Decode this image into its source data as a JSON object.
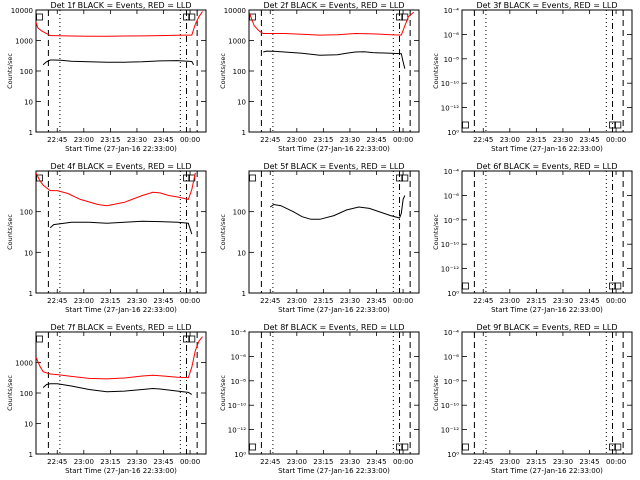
{
  "figure": {
    "time_ticks": [
      "22:45",
      "23:00",
      "23:15",
      "23:30",
      "23:45",
      "00:00"
    ],
    "xlabel": "Start Time (27-Jan-16 22:33:00)",
    "ylabel": "Counts/sec",
    "colors": {
      "events": "#000000",
      "lld": "#ff0000"
    }
  },
  "chart_data": [
    {
      "type": "line",
      "title": "Det 1f BLACK = Events, RED = LLD",
      "xlabel": "Start Time (27-Jan-16 22:33:00)",
      "ylabel": "Counts/sec",
      "yscale": "log",
      "ylim": [
        1,
        10000
      ],
      "ytick_labels": [
        "1",
        "10",
        "100",
        "1000",
        "10000"
      ],
      "x_unit": "minutes after 22:33:00",
      "xlim": [
        0,
        96
      ],
      "series": [
        {
          "color": "black",
          "points": [
            [
              4,
              160
            ],
            [
              6,
              200
            ],
            [
              8,
              230
            ],
            [
              10,
              230
            ],
            [
              14,
              225
            ],
            [
              20,
              210
            ],
            [
              30,
              200
            ],
            [
              40,
              195
            ],
            [
              50,
              195
            ],
            [
              60,
              200
            ],
            [
              70,
              215
            ],
            [
              80,
              220
            ],
            [
              88,
              205
            ],
            [
              89,
              160
            ]
          ]
        },
        {
          "color": "red",
          "points": [
            [
              0,
              4000
            ],
            [
              1,
              2600
            ],
            [
              3,
              2100
            ],
            [
              6,
              1700
            ],
            [
              8,
              1450
            ],
            [
              10,
              1450
            ],
            [
              20,
              1400
            ],
            [
              30,
              1380
            ],
            [
              40,
              1380
            ],
            [
              50,
              1400
            ],
            [
              60,
              1420
            ],
            [
              70,
              1450
            ],
            [
              80,
              1480
            ],
            [
              85,
              1500
            ],
            [
              88,
              1500
            ],
            [
              90,
              3500
            ],
            [
              92,
              6000
            ],
            [
              94,
              9000
            ]
          ]
        }
      ]
    },
    {
      "type": "line",
      "title": "Det 2f BLACK = Events, RED = LLD",
      "xlabel": "Start Time (27-Jan-16 22:33:00)",
      "ylabel": "Counts/sec",
      "yscale": "log",
      "ylim": [
        1,
        10000
      ],
      "ytick_labels": [
        "1",
        "10",
        "100",
        "1000",
        "10000"
      ],
      "x_unit": "minutes after 22:33:00",
      "xlim": [
        0,
        96
      ],
      "series": [
        {
          "color": "black",
          "points": [
            [
              8,
              420
            ],
            [
              10,
              450
            ],
            [
              15,
              440
            ],
            [
              20,
              420
            ],
            [
              30,
              380
            ],
            [
              40,
              330
            ],
            [
              50,
              340
            ],
            [
              55,
              380
            ],
            [
              60,
              420
            ],
            [
              65,
              430
            ],
            [
              70,
              400
            ],
            [
              80,
              380
            ],
            [
              86,
              370
            ],
            [
              87,
              200
            ],
            [
              88,
              120
            ]
          ]
        },
        {
          "color": "red",
          "points": [
            [
              0,
              9000
            ],
            [
              1,
              6000
            ],
            [
              3,
              3000
            ],
            [
              6,
              2000
            ],
            [
              8,
              1700
            ],
            [
              10,
              1700
            ],
            [
              20,
              1700
            ],
            [
              30,
              1600
            ],
            [
              40,
              1500
            ],
            [
              50,
              1550
            ],
            [
              60,
              1700
            ],
            [
              70,
              1650
            ],
            [
              80,
              1550
            ],
            [
              86,
              1500
            ],
            [
              88,
              3000
            ],
            [
              90,
              6000
            ],
            [
              93,
              8500
            ]
          ]
        }
      ]
    },
    {
      "type": "line",
      "title": "Det 3f BLACK = Events, RED = LLD",
      "xlabel": "Start Time (27-Jan-16 22:33:00)",
      "ylabel": "Counts/sec",
      "yscale": "log",
      "ylim": [
        1,
        1000000000000
      ],
      "ytick_labels": [
        "10⁰",
        "10⁻¹²",
        "10⁻¹⁰",
        "10⁻⁸",
        "10⁻⁶",
        "10⁻⁴"
      ],
      "x_unit": "minutes after 22:33:00",
      "xlim": [
        0,
        96
      ],
      "series": []
    },
    {
      "type": "line",
      "title": "Det 4f BLACK = Events, RED = LLD",
      "xlabel": "Start Time (27-Jan-16 22:33:00)",
      "ylabel": "Counts/sec",
      "yscale": "log",
      "ylim": [
        1,
        1000
      ],
      "ytick_labels": [
        "1",
        "10",
        "100"
      ],
      "x_unit": "minutes after 22:33:00",
      "xlim": [
        0,
        96
      ],
      "series": [
        {
          "color": "black",
          "points": [
            [
              8,
              40
            ],
            [
              10,
              48
            ],
            [
              20,
              55
            ],
            [
              30,
              55
            ],
            [
              40,
              52
            ],
            [
              50,
              55
            ],
            [
              60,
              58
            ],
            [
              70,
              57
            ],
            [
              80,
              55
            ],
            [
              86,
              52
            ],
            [
              87,
              38
            ],
            [
              88,
              28
            ]
          ]
        },
        {
          "color": "red",
          "points": [
            [
              0,
              900
            ],
            [
              2,
              600
            ],
            [
              4,
              450
            ],
            [
              8,
              330
            ],
            [
              12,
              330
            ],
            [
              18,
              280
            ],
            [
              25,
              200
            ],
            [
              35,
              150
            ],
            [
              40,
              140
            ],
            [
              50,
              170
            ],
            [
              60,
              250
            ],
            [
              66,
              300
            ],
            [
              70,
              290
            ],
            [
              75,
              250
            ],
            [
              80,
              230
            ],
            [
              86,
              200
            ],
            [
              88,
              350
            ],
            [
              90,
              900
            ]
          ]
        }
      ]
    },
    {
      "type": "line",
      "title": "Det 5f BLACK = Events, RED = LLD",
      "xlabel": "Start Time (27-Jan-16 22:33:00)",
      "ylabel": "Counts/sec",
      "yscale": "log",
      "ylim": [
        1,
        1000
      ],
      "ytick_labels": [
        "1",
        "10",
        "100"
      ],
      "x_unit": "minutes after 22:33:00",
      "xlim": [
        0,
        96
      ],
      "series": [
        {
          "color": "black",
          "points": [
            [
              12,
              130
            ],
            [
              14,
              150
            ],
            [
              18,
              140
            ],
            [
              25,
              100
            ],
            [
              30,
              75
            ],
            [
              35,
              65
            ],
            [
              40,
              65
            ],
            [
              48,
              80
            ],
            [
              55,
              110
            ],
            [
              62,
              130
            ],
            [
              68,
              120
            ],
            [
              75,
              95
            ],
            [
              80,
              80
            ],
            [
              85,
              70
            ],
            [
              86,
              90
            ],
            [
              87,
              200
            ],
            [
              88,
              250
            ]
          ]
        }
      ]
    },
    {
      "type": "line",
      "title": "Det 6f BLACK = Events, RED = LLD",
      "xlabel": "Start Time (27-Jan-16 22:33:00)",
      "ylabel": "Counts/sec",
      "yscale": "log",
      "ylim": [
        1,
        1000000000000
      ],
      "ytick_labels": [
        "10⁰",
        "10⁻¹²",
        "10⁻¹⁰",
        "10⁻⁸",
        "10⁻⁶",
        "10⁻⁴"
      ],
      "x_unit": "minutes after 22:33:00",
      "xlim": [
        0,
        96
      ],
      "series": []
    },
    {
      "type": "line",
      "title": "Det 7f BLACK = Events, RED = LLD",
      "xlabel": "Start Time (27-Jan-16 22:33:00)",
      "ylabel": "Counts/sec",
      "yscale": "log",
      "ylim": [
        1,
        10000
      ],
      "ytick_labels": [
        "1",
        "10",
        "100",
        "1000"
      ],
      "x_unit": "minutes after 22:33:00",
      "xlim": [
        0,
        96
      ],
      "series": [
        {
          "color": "black",
          "points": [
            [
              4,
              150
            ],
            [
              6,
              190
            ],
            [
              8,
              200
            ],
            [
              12,
              200
            ],
            [
              20,
              170
            ],
            [
              30,
              130
            ],
            [
              40,
              110
            ],
            [
              50,
              115
            ],
            [
              60,
              130
            ],
            [
              66,
              140
            ],
            [
              70,
              135
            ],
            [
              80,
              115
            ],
            [
              86,
              105
            ],
            [
              88,
              90
            ]
          ]
        },
        {
          "color": "red",
          "points": [
            [
              0,
              1500
            ],
            [
              2,
              800
            ],
            [
              4,
              500
            ],
            [
              8,
              420
            ],
            [
              12,
              400
            ],
            [
              20,
              350
            ],
            [
              30,
              300
            ],
            [
              40,
              290
            ],
            [
              50,
              310
            ],
            [
              60,
              360
            ],
            [
              66,
              380
            ],
            [
              70,
              370
            ],
            [
              80,
              330
            ],
            [
              86,
              320
            ],
            [
              88,
              700
            ],
            [
              90,
              2500
            ],
            [
              92,
              5000
            ],
            [
              94,
              7000
            ]
          ]
        }
      ]
    },
    {
      "type": "line",
      "title": "Det 8f BLACK = Events, RED = LLD",
      "xlabel": "Start Time (27-Jan-16 22:33:00)",
      "ylabel": "Counts/sec",
      "yscale": "log",
      "ylim": [
        1,
        1000000000000
      ],
      "ytick_labels": [
        "10⁰",
        "10⁻¹²",
        "10⁻¹⁰",
        "10⁻⁸",
        "10⁻⁶",
        "10⁻⁴"
      ],
      "x_unit": "minutes after 22:33:00",
      "xlim": [
        0,
        96
      ],
      "series": []
    },
    {
      "type": "line",
      "title": "Det 9f BLACK = Events, RED = LLD",
      "xlabel": "Start Time (27-Jan-16 22:33:00)",
      "ylabel": "Counts/sec",
      "yscale": "log",
      "ylim": [
        1,
        1000000000000
      ],
      "ytick_labels": [
        "10⁰",
        "10⁻¹²",
        "10⁻¹⁰",
        "10⁻⁸",
        "10⁻⁶",
        "10⁻⁴"
      ],
      "x_unit": "minutes after 22:33:00",
      "xlim": [
        0,
        96
      ],
      "series": []
    }
  ]
}
